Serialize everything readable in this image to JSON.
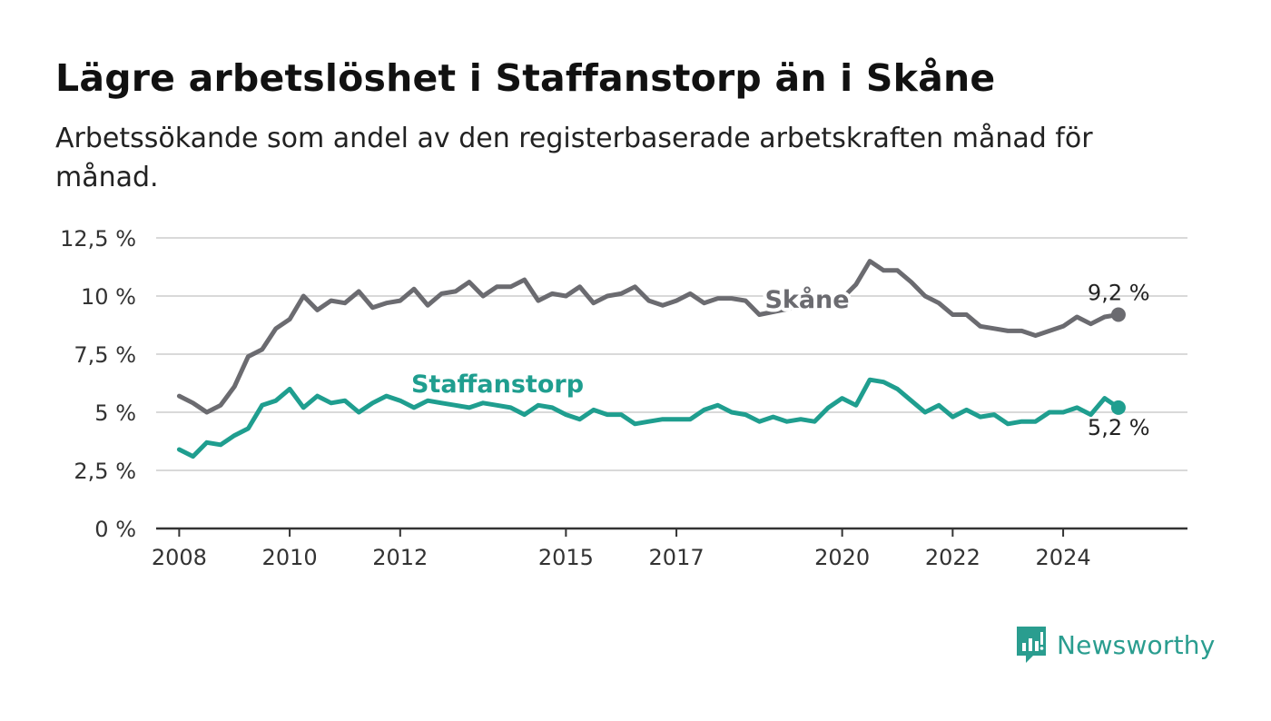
{
  "header": {
    "title": "Lägre arbetslöshet i Staffanstorp än i Skåne",
    "subtitle": "Arbetssökande som andel av den registerbaserade arbetskraften månad för månad."
  },
  "brand": {
    "name": "Newsworthy",
    "icon": "newsworthy-logo-icon",
    "color": "#2a9d8f"
  },
  "chart_data": {
    "type": "line",
    "title": "Lägre arbetslöshet i Staffanstorp än i Skåne",
    "subtitle": "Arbetssökande som andel av den registerbaserade arbetskraften månad för månad.",
    "xlabel": "",
    "ylabel": "",
    "ylim": [
      0,
      12.5
    ],
    "yticks": [
      0,
      2.5,
      5,
      7.5,
      10,
      12.5
    ],
    "ytick_labels": [
      "0 %",
      "2,5 %",
      "5 %",
      "7,5 %",
      "10 %",
      "12,5 %"
    ],
    "xticks": [
      2008,
      2010,
      2012,
      2015,
      2017,
      2020,
      2022,
      2024
    ],
    "xtick_labels": [
      "2008",
      "2010",
      "2012",
      "2015",
      "2017",
      "2020",
      "2022",
      "2024"
    ],
    "grid": true,
    "legend": "inline labels",
    "series": [
      {
        "name": "Skåne",
        "color": "#6b6b70",
        "end_label": "9,2 %",
        "x": [
          2008.0,
          2008.25,
          2008.5,
          2008.75,
          2009.0,
          2009.25,
          2009.5,
          2009.75,
          2010.0,
          2010.25,
          2010.5,
          2010.75,
          2011.0,
          2011.25,
          2011.5,
          2011.75,
          2012.0,
          2012.25,
          2012.5,
          2012.75,
          2013.0,
          2013.25,
          2013.5,
          2013.75,
          2014.0,
          2014.25,
          2014.5,
          2014.75,
          2015.0,
          2015.25,
          2015.5,
          2015.75,
          2016.0,
          2016.25,
          2016.5,
          2016.75,
          2017.0,
          2017.25,
          2017.5,
          2017.75,
          2018.0,
          2018.25,
          2018.5,
          2019.75,
          2020.0,
          2020.25,
          2020.5,
          2020.75,
          2021.0,
          2021.25,
          2021.5,
          2021.75,
          2022.0,
          2022.25,
          2022.5,
          2022.75,
          2023.0,
          2023.25,
          2023.5,
          2023.75,
          2024.0,
          2024.25,
          2024.5,
          2024.75,
          2025.0
        ],
        "y": [
          5.7,
          5.4,
          5.0,
          5.3,
          6.1,
          7.4,
          7.7,
          8.6,
          9.0,
          10.0,
          9.4,
          9.8,
          9.7,
          10.2,
          9.5,
          9.7,
          9.8,
          10.3,
          9.6,
          10.1,
          10.2,
          10.6,
          10.0,
          10.4,
          10.4,
          10.7,
          9.8,
          10.1,
          10.0,
          10.4,
          9.7,
          10.0,
          10.1,
          10.4,
          9.8,
          9.6,
          9.8,
          10.1,
          9.7,
          9.9,
          9.9,
          9.8,
          9.2,
          9.8,
          9.9,
          10.5,
          11.5,
          11.1,
          11.1,
          10.6,
          10.0,
          9.7,
          9.2,
          9.2,
          8.7,
          8.6,
          8.5,
          8.5,
          8.3,
          8.5,
          8.7,
          9.1,
          8.8,
          9.1,
          9.2
        ]
      },
      {
        "name": "Staffanstorp",
        "color": "#1f9e8f",
        "end_label": "5,2 %",
        "x": [
          2008.0,
          2008.25,
          2008.5,
          2008.75,
          2009.0,
          2009.25,
          2009.5,
          2009.75,
          2010.0,
          2010.25,
          2010.5,
          2010.75,
          2011.0,
          2011.25,
          2011.5,
          2011.75,
          2012.0,
          2012.25,
          2012.5,
          2012.75,
          2013.0,
          2013.25,
          2013.5,
          2013.75,
          2014.0,
          2014.25,
          2014.5,
          2014.75,
          2015.0,
          2015.25,
          2015.5,
          2015.75,
          2016.0,
          2016.25,
          2016.5,
          2016.75,
          2017.0,
          2017.25,
          2017.5,
          2017.75,
          2018.0,
          2018.25,
          2018.5,
          2018.75,
          2019.0,
          2019.25,
          2019.5,
          2019.75,
          2020.0,
          2020.25,
          2020.5,
          2020.75,
          2021.0,
          2021.25,
          2021.5,
          2021.75,
          2022.0,
          2022.25,
          2022.5,
          2022.75,
          2023.0,
          2023.25,
          2023.5,
          2023.75,
          2024.0,
          2024.25,
          2024.5,
          2024.75,
          2025.0
        ],
        "y": [
          3.4,
          3.1,
          3.7,
          3.6,
          4.0,
          4.3,
          5.3,
          5.5,
          6.0,
          5.2,
          5.7,
          5.4,
          5.5,
          5.0,
          5.4,
          5.7,
          5.5,
          5.2,
          5.5,
          5.4,
          5.3,
          5.2,
          5.4,
          5.3,
          5.2,
          4.9,
          5.3,
          5.2,
          4.9,
          4.7,
          5.1,
          4.9,
          4.9,
          4.5,
          4.6,
          4.7,
          4.7,
          4.7,
          5.1,
          5.3,
          5.0,
          4.9,
          4.6,
          4.8,
          4.6,
          4.7,
          4.6,
          5.2,
          5.6,
          5.3,
          6.4,
          6.3,
          6.0,
          5.5,
          5.0,
          5.3,
          4.8,
          5.1,
          4.8,
          4.9,
          4.5,
          4.6,
          4.6,
          5.0,
          5.0,
          5.2,
          4.9,
          5.6,
          5.2
        ]
      }
    ],
    "annotations": [
      {
        "series": "Skåne",
        "text": "Skåne",
        "x": 2018.6,
        "y": 9.5
      },
      {
        "series": "Staffanstorp",
        "text": "Staffanstorp",
        "x": 2012.2,
        "y": 5.85
      }
    ]
  }
}
